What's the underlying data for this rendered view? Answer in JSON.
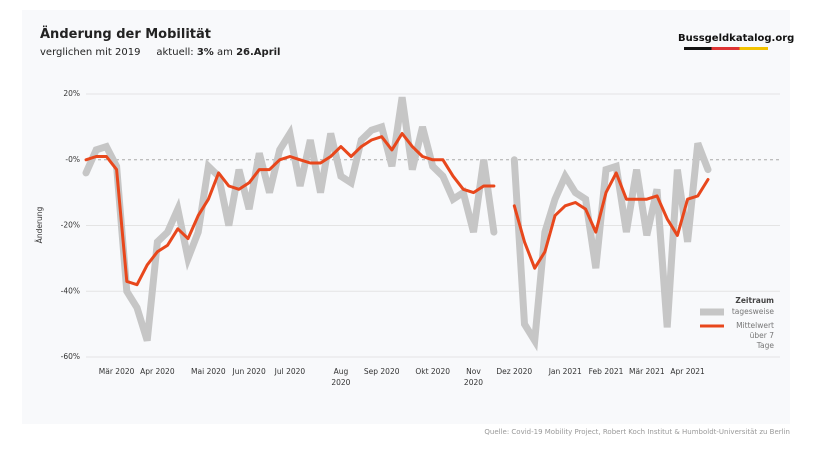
{
  "header": {
    "title": "Änderung der Mobilität",
    "subtitle": "verglichen mit 2019",
    "current_label": "aktuell:",
    "current_value": "3%",
    "current_on": "am",
    "current_date": "26.April",
    "logo": "Bussgeldkatalog.org"
  },
  "source": "Quelle: Covid-19 Mobility Project, Robert Koch Institut & Humboldt-Universität zu Berlin",
  "chart_data": {
    "type": "line",
    "ylabel": "Änderung",
    "legend_title": "Zeitraum",
    "legend_position": "lower right",
    "categories": [
      null,
      null,
      null,
      "Mär 2020",
      null,
      null,
      null,
      "Apr 2020",
      null,
      null,
      null,
      null,
      "Mai 2020",
      null,
      null,
      null,
      "Jun 2020",
      null,
      null,
      null,
      "Jul 2020",
      null,
      null,
      null,
      null,
      "Aug 2020",
      null,
      null,
      null,
      "Sep 2020",
      null,
      null,
      null,
      null,
      "Okt 2020",
      null,
      null,
      null,
      "Nov 2020",
      null,
      null,
      null,
      "Dez 2020",
      null,
      null,
      null,
      null,
      "Jan 2021",
      null,
      null,
      null,
      "Feb 2021",
      null,
      null,
      null,
      "Mär 2021",
      null,
      null,
      null,
      "Apr 2021",
      null,
      null
    ],
    "series": [
      {
        "name": "tagesweise",
        "color": "#c6c6c6",
        "values": [
          -4,
          3,
          4,
          -2,
          -40,
          -45,
          -55,
          -25,
          -22,
          -15,
          -30,
          -22,
          -2,
          -5,
          -20,
          -3,
          -15,
          2,
          -10,
          3,
          8,
          -8,
          6,
          -10,
          8,
          -5,
          -7,
          6,
          9,
          10,
          -2,
          19,
          -3,
          10,
          -2,
          -5,
          -12,
          -10,
          -22,
          0,
          -22,
          null,
          0,
          -50,
          -55,
          -22,
          -12,
          -5,
          -10,
          -12,
          -33,
          -3,
          -2,
          -22,
          -3,
          -23,
          -9,
          -51,
          -3,
          -25,
          5,
          -3
        ]
      },
      {
        "name": "Mittelwert über 7 Tage",
        "color": "#e8471c",
        "values": [
          0,
          1,
          1,
          -3,
          -37,
          -38,
          -32,
          -28,
          -26,
          -21,
          -24,
          -17,
          -12,
          -4,
          -8,
          -9,
          -7,
          -3,
          -3,
          0,
          1,
          0,
          -1,
          -1,
          1,
          4,
          1,
          4,
          6,
          7,
          3,
          8,
          4,
          1,
          0,
          0,
          -5,
          -9,
          -10,
          -8,
          -8,
          null,
          -14,
          -25,
          -33,
          -28,
          -17,
          -14,
          -13,
          -15,
          -22,
          -10,
          -4,
          -12,
          -12,
          -12,
          -11,
          -18,
          -23,
          -12,
          -11,
          -6
        ]
      }
    ],
    "ylim": [
      -60,
      20
    ],
    "yticks": [
      {
        "value": 20,
        "label": "20%"
      },
      {
        "value": 0,
        "label": "-0%"
      },
      {
        "value": -20,
        "label": "-20%"
      },
      {
        "value": -40,
        "label": "-40%"
      },
      {
        "value": -60,
        "label": "-60%"
      }
    ],
    "grid": true
  }
}
